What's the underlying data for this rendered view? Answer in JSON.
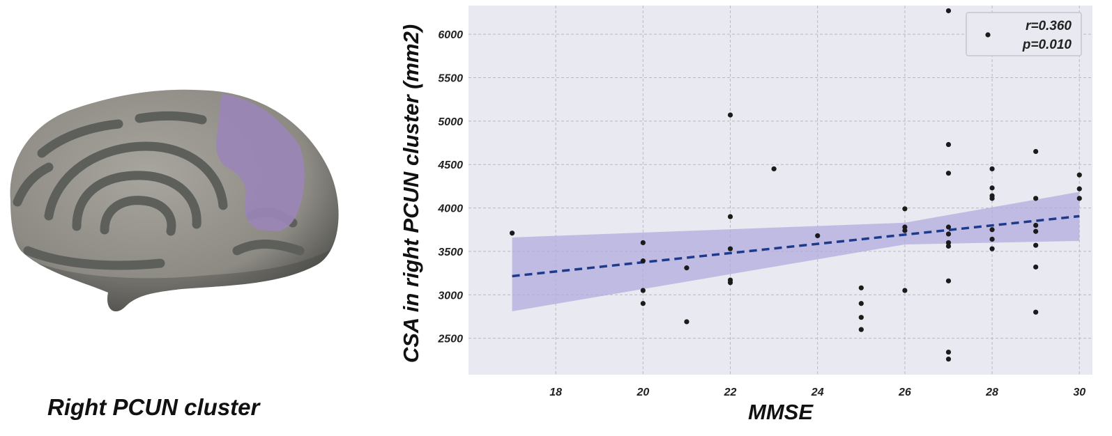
{
  "brain": {
    "caption": "Right PCUN cluster",
    "surface_color": "#96938d",
    "sulcus_color": "#5d5f5b",
    "cluster_color": "#9a86b6"
  },
  "colors": {
    "plot_background": "#e9e9f1",
    "grid": "#b8b8c4",
    "point": "#1b1b1b",
    "fit_line": "#1d3a8c",
    "confidence_band": "#b1abde"
  },
  "chart_data": {
    "type": "scatter",
    "xlabel": "MMSE",
    "ylabel": "CSA in right PCUN cluster (mm2)",
    "xlim": [
      16.0,
      30.3
    ],
    "ylim": [
      2080,
      6330
    ],
    "xticks": [
      18,
      20,
      22,
      24,
      26,
      28,
      30
    ],
    "yticks": [
      2500,
      3000,
      3500,
      4000,
      4500,
      5000,
      5500,
      6000
    ],
    "grid": true,
    "grid_style": "dashed",
    "legend_position": "top-right",
    "legend": {
      "r_text": "r=0.360",
      "p_text": "p=0.010"
    },
    "points": [
      [
        17,
        3710
      ],
      [
        20,
        3600
      ],
      [
        20,
        3390
      ],
      [
        20,
        3050
      ],
      [
        20,
        2900
      ],
      [
        21,
        3310
      ],
      [
        21,
        2690
      ],
      [
        22,
        5070
      ],
      [
        22,
        3900
      ],
      [
        22,
        3530
      ],
      [
        22,
        3170
      ],
      [
        22,
        3140
      ],
      [
        23,
        4450
      ],
      [
        24,
        3680
      ],
      [
        25,
        3080
      ],
      [
        25,
        2900
      ],
      [
        25,
        2740
      ],
      [
        25,
        2600
      ],
      [
        26,
        3990
      ],
      [
        26,
        3780
      ],
      [
        26,
        3740
      ],
      [
        26,
        3050
      ],
      [
        27,
        6270
      ],
      [
        27,
        4730
      ],
      [
        27,
        4400
      ],
      [
        27,
        3780
      ],
      [
        27,
        3700
      ],
      [
        27,
        3600
      ],
      [
        27,
        3560
      ],
      [
        27,
        3160
      ],
      [
        27,
        2340
      ],
      [
        27,
        2260
      ],
      [
        28,
        4450
      ],
      [
        28,
        4230
      ],
      [
        28,
        4140
      ],
      [
        28,
        4110
      ],
      [
        28,
        3750
      ],
      [
        28,
        3640
      ],
      [
        28,
        3530
      ],
      [
        29,
        4650
      ],
      [
        29,
        4110
      ],
      [
        29,
        3800
      ],
      [
        29,
        3730
      ],
      [
        29,
        3570
      ],
      [
        29,
        3320
      ],
      [
        29,
        2800
      ],
      [
        30,
        4380
      ],
      [
        30,
        4220
      ],
      [
        30,
        4110
      ]
    ],
    "fit_line": {
      "x": [
        17,
        30
      ],
      "y": [
        3215,
        3905
      ]
    },
    "confidence_band": {
      "x": [
        17,
        26,
        30
      ],
      "lower": [
        2810,
        3580,
        3620
      ],
      "upper": [
        3660,
        3830,
        4185
      ]
    }
  }
}
